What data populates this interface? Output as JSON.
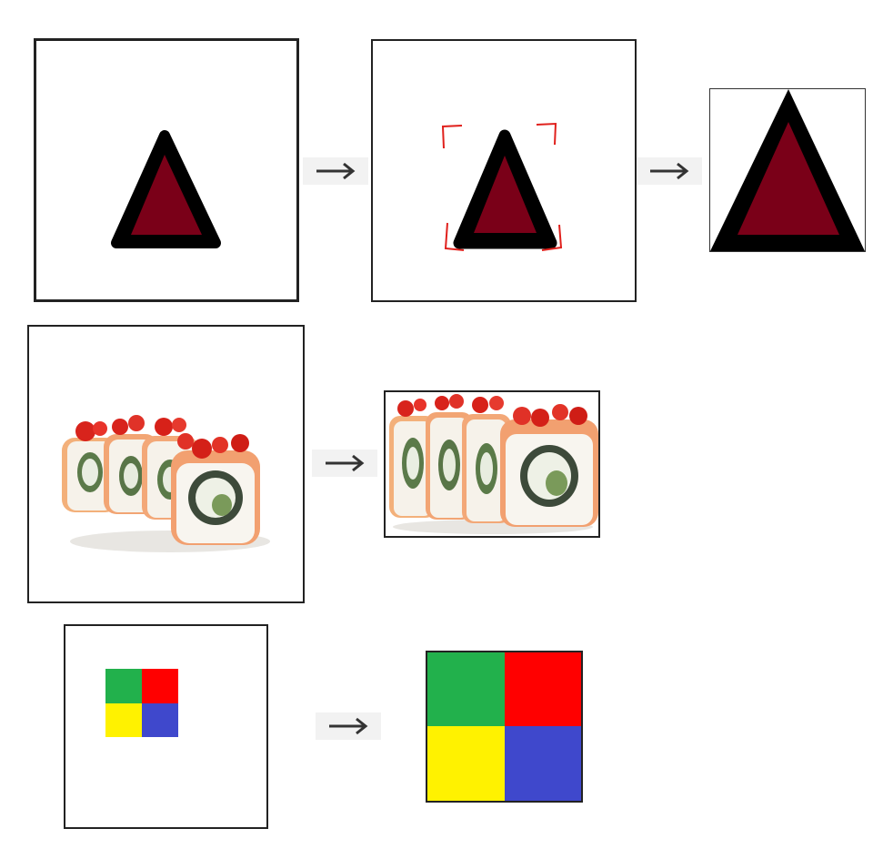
{
  "diagram": {
    "rows": [
      {
        "name": "triangle-crop-row",
        "steps": [
          "original",
          "crop-selection",
          "cropped-result"
        ],
        "shape": {
          "fill": "#7a0018",
          "outline": "#000000"
        },
        "selection_color": "#e0201c"
      },
      {
        "name": "sushi-crop-row",
        "steps": [
          "original",
          "cropped-result"
        ]
      },
      {
        "name": "color-block-crop-row",
        "steps": [
          "original",
          "cropped-result"
        ],
        "quadrants": {
          "top_left": "#22b14c",
          "top_right": "#ff0000",
          "bottom_left": "#fff200",
          "bottom_right": "#3f48cc"
        }
      }
    ],
    "arrow_icon": "right-arrow-icon"
  }
}
